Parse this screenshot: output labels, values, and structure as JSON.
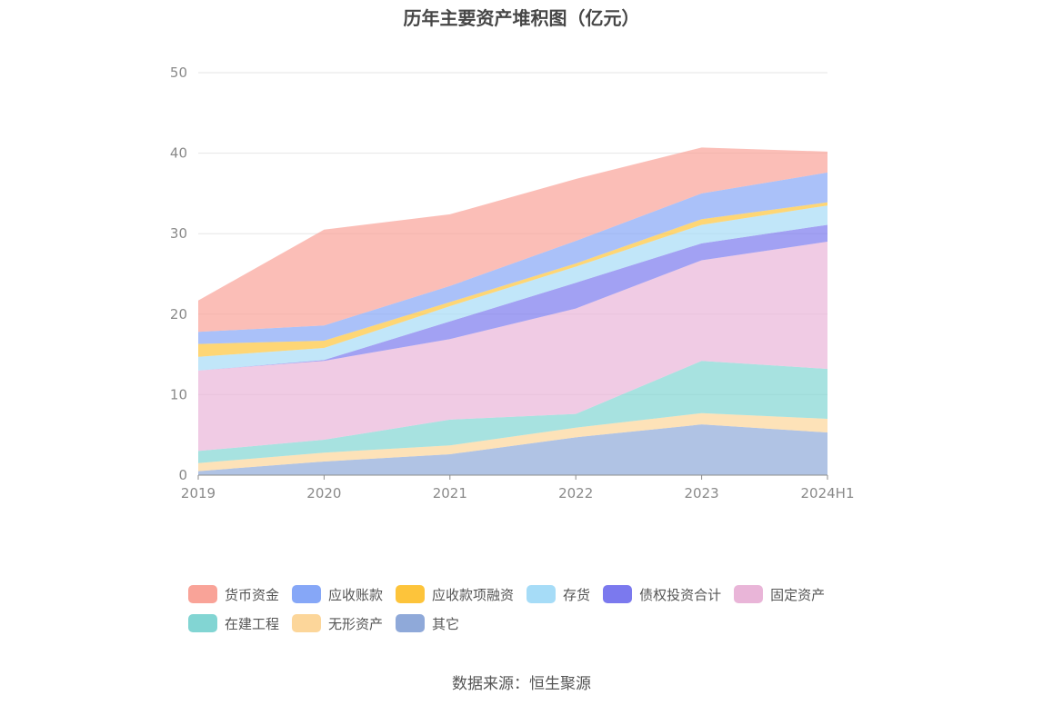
{
  "chart_data": {
    "type": "area",
    "stacked": true,
    "title": "历年主要资产堆积图（亿元）",
    "categories": [
      "2019",
      "2020",
      "2021",
      "2022",
      "2023",
      "2024H1"
    ],
    "ylim": [
      0,
      50
    ],
    "yticks": [
      "0",
      "10",
      "20",
      "30",
      "40",
      "50"
    ],
    "grid": true,
    "legend_position": "bottom",
    "series": [
      {
        "name": "其它",
        "color": "#8fa9d9",
        "values": [
          0.5,
          1.7,
          2.6,
          4.7,
          6.3,
          5.3
        ]
      },
      {
        "name": "无形资产",
        "color": "#fcd69a",
        "values": [
          1.0,
          1.1,
          1.1,
          1.2,
          1.4,
          1.7
        ]
      },
      {
        "name": "在建工程",
        "color": "#82d5d3",
        "values": [
          1.5,
          1.6,
          3.2,
          1.7,
          6.5,
          6.2
        ]
      },
      {
        "name": "固定资产",
        "color": "#e9b5d8",
        "values": [
          10.0,
          9.8,
          10.0,
          13.1,
          12.5,
          15.8
        ]
      },
      {
        "name": "债权投资合计",
        "color": "#7b79ee",
        "values": [
          0.0,
          0.1,
          2.2,
          3.2,
          2.1,
          2.1
        ]
      },
      {
        "name": "存货",
        "color": "#a6dcf7",
        "values": [
          1.7,
          1.5,
          1.9,
          2.0,
          2.3,
          2.4
        ]
      },
      {
        "name": "应收款项融资",
        "color": "#fdc43b",
        "values": [
          1.6,
          0.9,
          0.5,
          0.4,
          0.7,
          0.4
        ]
      },
      {
        "name": "应收账款",
        "color": "#86a7f7",
        "values": [
          1.5,
          1.9,
          2.0,
          2.8,
          3.2,
          3.7
        ]
      },
      {
        "name": "货币资金",
        "color": "#f9a398",
        "values": [
          3.9,
          11.9,
          8.9,
          7.7,
          5.7,
          2.6
        ]
      }
    ],
    "legend_order": [
      "货币资金",
      "应收账款",
      "应收款项融资",
      "存货",
      "债权投资合计",
      "固定资产",
      "在建工程",
      "无形资产",
      "其它"
    ]
  },
  "source_text": "数据来源：恒生聚源"
}
